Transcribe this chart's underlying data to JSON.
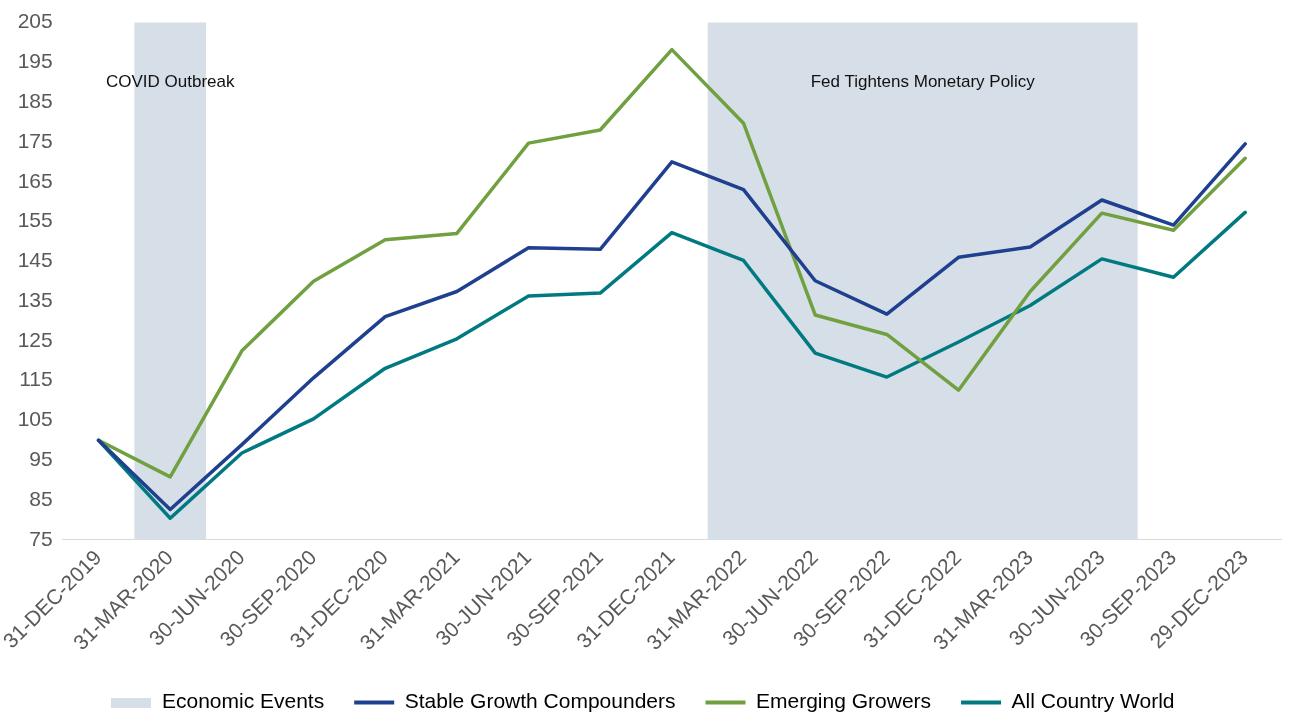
{
  "chart_data": {
    "type": "line",
    "categories": [
      "31-DEC-2019",
      "31-MAR-2020",
      "30-JUN-2020",
      "30-SEP-2020",
      "31-DEC-2020",
      "31-MAR-2021",
      "30-JUN-2021",
      "30-SEP-2021",
      "31-DEC-2021",
      "31-MAR-2022",
      "30-JUN-2022",
      "30-SEP-2022",
      "31-DEC-2022",
      "31-MAR-2023",
      "30-JUN-2023",
      "30-SEP-2023",
      "29-DEC-2023"
    ],
    "series": [
      {
        "name": "Stable Growth Compounders",
        "color": "#1f3f8f",
        "values": [
          100,
          82.6,
          98.9,
          115.7,
          131.1,
          137.4,
          148.4,
          148.0,
          170.0,
          163.0,
          140.1,
          131.7,
          146.0,
          148.6,
          160.4,
          154.1,
          174.5
        ]
      },
      {
        "name": "Emerging Growers",
        "color": "#70a040",
        "values": [
          100,
          90.8,
          122.5,
          140.0,
          150.4,
          152.0,
          174.7,
          178.0,
          198.2,
          179.7,
          131.5,
          126.6,
          112.6,
          137.4,
          157.1,
          152.8,
          170.9
        ]
      },
      {
        "name": "All Country World",
        "color": "#007a80",
        "values": [
          100,
          80.4,
          96.8,
          105.4,
          118.1,
          125.5,
          136.3,
          137.0,
          152.2,
          145.2,
          121.9,
          115.9,
          124.7,
          133.9,
          145.6,
          141.0,
          157.3
        ]
      }
    ],
    "ylim": [
      75,
      205
    ],
    "yticks": [
      75,
      85,
      95,
      105,
      115,
      125,
      135,
      145,
      155,
      165,
      175,
      185,
      195,
      205
    ],
    "bands": [
      {
        "axis": "x",
        "from": "31-MAR-2020",
        "to": "31-MAR-2020",
        "label": "COVID Outbreak",
        "color": "#d6dee7"
      },
      {
        "axis": "x",
        "from": "31-MAR-2022",
        "to": "30-JUN-2023",
        "label": "Fed Tightens Monetary Policy",
        "color": "#d6dee7"
      }
    ],
    "annotations": [
      "Economic Events"
    ],
    "grid": false,
    "legend": "bottom",
    "marker": "none",
    "line_style": "solid"
  }
}
